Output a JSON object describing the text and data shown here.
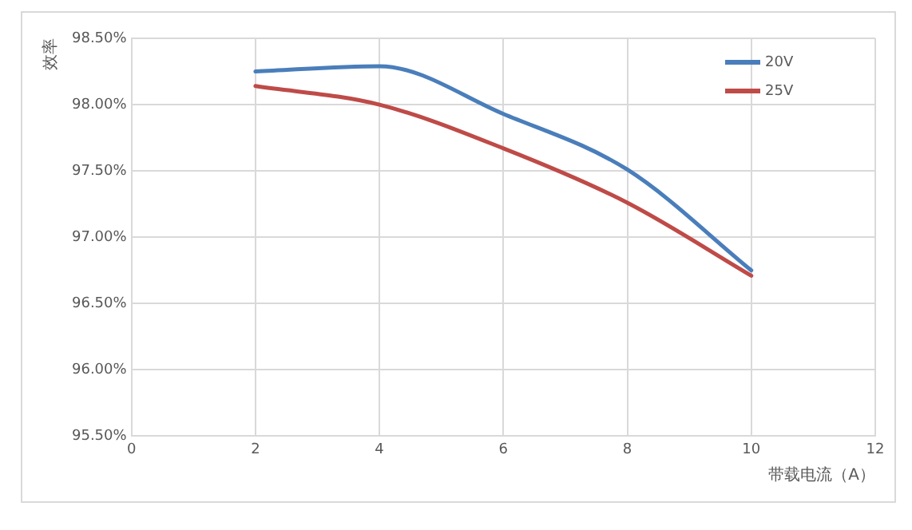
{
  "chart_data": {
    "type": "line",
    "xlabel": "带载电流（A）",
    "ylabel": "效率",
    "x": [
      2,
      4,
      6,
      8,
      10
    ],
    "series": [
      {
        "name": "20V",
        "color": "#4a7ebb",
        "values": [
          98.25,
          98.29,
          97.93,
          97.51,
          96.75
        ]
      },
      {
        "name": "25V",
        "color": "#be4b48",
        "values": [
          98.14,
          98.0,
          97.67,
          97.26,
          96.71
        ]
      }
    ],
    "xlim": [
      0,
      12
    ],
    "xticks": [
      0,
      2,
      4,
      6,
      8,
      10,
      12
    ],
    "ylim": [
      95.5,
      98.5
    ],
    "yticks": [
      {
        "value": 95.5,
        "label": "95.50%"
      },
      {
        "value": 96,
        "label": "96.00%"
      },
      {
        "value": 96.5,
        "label": "96.50%"
      },
      {
        "value": 97,
        "label": "97.00%"
      },
      {
        "value": 97.5,
        "label": "97.50%"
      },
      {
        "value": 98,
        "label": "98.00%"
      },
      {
        "value": 98.5,
        "label": "98.50%"
      }
    ],
    "grid": true,
    "legend": "top right",
    "marker": "none",
    "line_style": "solid"
  }
}
